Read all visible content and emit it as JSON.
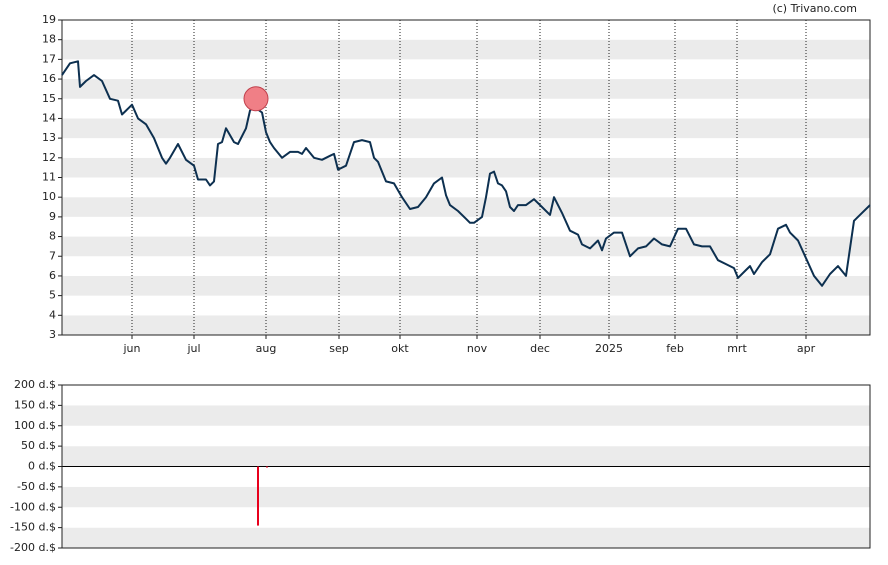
{
  "credit": "(c) Trivano.com",
  "chart_data": [
    {
      "type": "line",
      "x": [
        0,
        8,
        16,
        18,
        24,
        32,
        40,
        48,
        56,
        60,
        64,
        70,
        76,
        84,
        92,
        100,
        104,
        108,
        116,
        124,
        132,
        136,
        144,
        148,
        152,
        156,
        160,
        164,
        172,
        176,
        184,
        188,
        192,
        200,
        204,
        208,
        212,
        220,
        228,
        236,
        240,
        244,
        252,
        260,
        268,
        272,
        276,
        284,
        292,
        300,
        308,
        312,
        316,
        324,
        332,
        340,
        348,
        356,
        364,
        372,
        380,
        384,
        388,
        396,
        404,
        408,
        412,
        420,
        424,
        428,
        432,
        436,
        440,
        444,
        448,
        452,
        456,
        464,
        472,
        480,
        488,
        492,
        500,
        508,
        516,
        520,
        528,
        536,
        540,
        544,
        552,
        560,
        564,
        568,
        576,
        584,
        592,
        600,
        608,
        616,
        624,
        632,
        640,
        648,
        656,
        664,
        672,
        676,
        684,
        688,
        692,
        700,
        708,
        716,
        724,
        728,
        736,
        744,
        752,
        760,
        768,
        776,
        784,
        792,
        800,
        808
      ],
      "values": [
        16.2,
        16.8,
        16.9,
        15.6,
        15.9,
        16.2,
        15.9,
        15.0,
        14.9,
        14.2,
        14.4,
        14.7,
        14.0,
        13.7,
        13.0,
        12.0,
        11.7,
        12.0,
        12.7,
        11.9,
        11.6,
        10.9,
        10.9,
        10.6,
        10.8,
        12.7,
        12.8,
        13.5,
        12.8,
        12.7,
        13.5,
        14.4,
        14.6,
        14.3,
        13.3,
        12.8,
        12.5,
        12.0,
        12.3,
        12.3,
        12.2,
        12.5,
        12.0,
        11.9,
        12.1,
        12.2,
        11.4,
        11.6,
        12.8,
        12.9,
        12.8,
        12.0,
        11.8,
        10.8,
        10.7,
        10.0,
        9.4,
        9.5,
        10.0,
        10.7,
        11.0,
        10.1,
        9.6,
        9.3,
        8.9,
        8.7,
        8.7,
        9.0,
        10.0,
        11.2,
        11.3,
        10.7,
        10.6,
        10.3,
        9.5,
        9.3,
        9.6,
        9.6,
        9.9,
        9.5,
        9.1,
        10.0,
        9.2,
        8.3,
        8.1,
        7.6,
        7.4,
        7.8,
        7.3,
        7.9,
        8.2,
        8.2,
        7.6,
        7.0,
        7.4,
        7.5,
        7.9,
        7.6,
        7.5,
        8.4,
        8.4,
        7.6,
        7.5,
        7.5,
        6.8,
        6.6,
        6.4,
        5.9,
        6.3,
        6.5,
        6.1,
        6.7,
        7.1,
        8.4,
        8.6,
        8.2,
        7.8,
        6.9,
        6.0,
        5.5,
        6.1,
        6.5,
        6.0,
        8.8,
        9.2,
        9.6
      ],
      "color": "#0d3050",
      "highlight": {
        "x": 194,
        "y": 15.0,
        "color": "#f07f86"
      },
      "xlim": [
        0,
        808
      ],
      "xticks": [
        {
          "value": 70,
          "label": "jun"
        },
        {
          "value": 132,
          "label": "jul"
        },
        {
          "value": 204,
          "label": "aug"
        },
        {
          "value": 277,
          "label": "sep"
        },
        {
          "value": 338,
          "label": "okt"
        },
        {
          "value": 415,
          "label": "nov"
        },
        {
          "value": 478,
          "label": "dec"
        },
        {
          "value": 547,
          "label": "2025"
        },
        {
          "value": 613,
          "label": "feb"
        },
        {
          "value": 675,
          "label": "mrt"
        },
        {
          "value": 744,
          "label": "apr"
        }
      ],
      "ylim": [
        3,
        19
      ],
      "yticks": [
        3,
        4,
        5,
        6,
        7,
        8,
        9,
        10,
        11,
        12,
        13,
        14,
        15,
        16,
        17,
        18,
        19
      ],
      "grid": "bands",
      "xgrid": true
    },
    {
      "type": "bar",
      "x": [
        196,
        205
      ],
      "values": [
        -145,
        -2
      ],
      "color": "#e8001c",
      "xlim": [
        0,
        808
      ],
      "ylim": [
        -200,
        200
      ],
      "yticks": [
        {
          "value": 200,
          "label": "200 d.$"
        },
        {
          "value": 150,
          "label": "150 d.$"
        },
        {
          "value": 100,
          "label": "100 d.$"
        },
        {
          "value": 50,
          "label": "50 d.$"
        },
        {
          "value": 0,
          "label": "0 d.$"
        },
        {
          "value": -50,
          "label": "-50 d.$"
        },
        {
          "value": -100,
          "label": "-100 d.$"
        },
        {
          "value": -150,
          "label": "-150 d.$"
        },
        {
          "value": -200,
          "label": "-200 d.$"
        }
      ],
      "grid": "bands",
      "xgrid": false
    }
  ]
}
